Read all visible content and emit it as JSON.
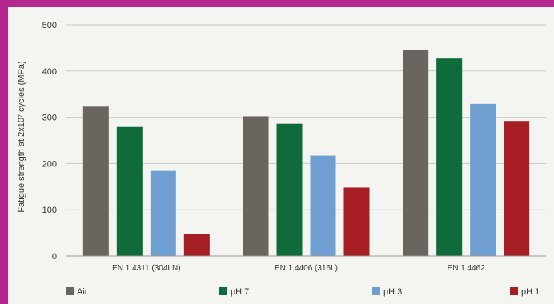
{
  "chart_data": {
    "type": "bar",
    "categories": [
      "EN 1.4311 (304LN)",
      "EN 1.4406 (316L)",
      "EN 1.4462"
    ],
    "series": [
      {
        "name": "Air",
        "color": "#6b6560",
        "values": [
          323,
          302,
          446
        ]
      },
      {
        "name": "pH 7",
        "color": "#0f6b3a",
        "values": [
          279,
          286,
          427
        ]
      },
      {
        "name": "pH 3",
        "color": "#6f9fd0",
        "values": [
          184,
          217,
          329
        ]
      },
      {
        "name": "pH 1",
        "color": "#a61d24",
        "values": [
          47,
          148,
          292
        ]
      }
    ],
    "ylabel": "Fatigue strength at 2x10⁷ cycles (MPa)",
    "yticks": [
      "0",
      "100",
      "200",
      "300",
      "400",
      "500"
    ],
    "ylim": [
      0,
      500
    ],
    "grid": true,
    "legend_position": "bottom"
  }
}
